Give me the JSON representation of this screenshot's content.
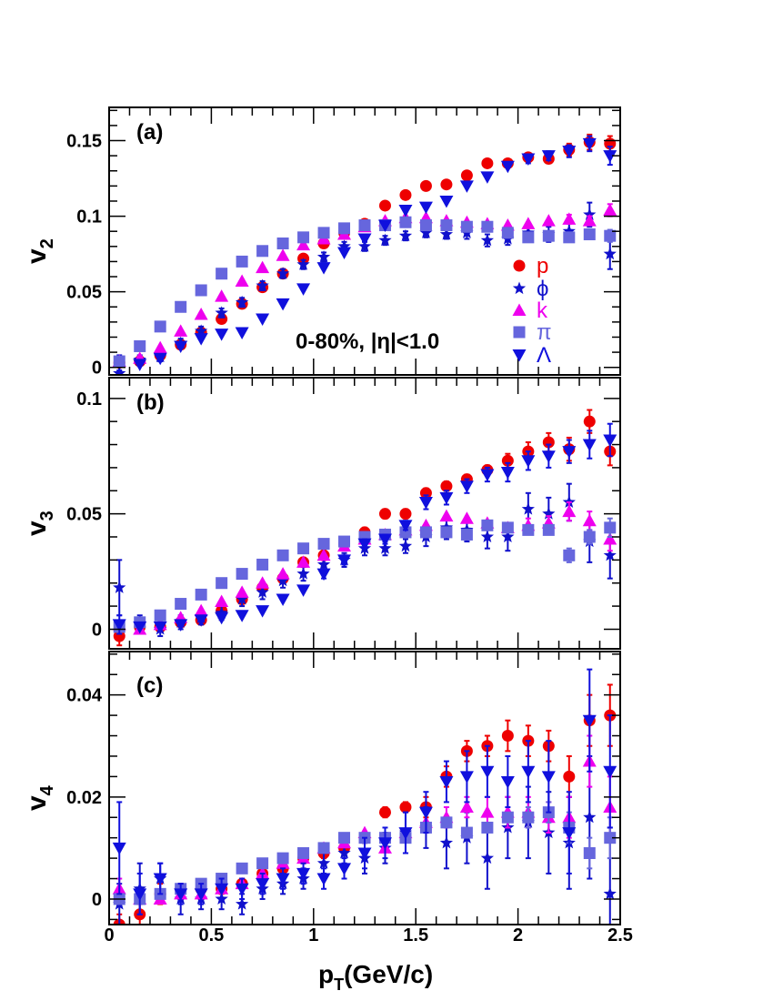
{
  "colors": {
    "p": "#ee0000",
    "phi": "#1010cc",
    "k": "#ee00ee",
    "pi": "#6666dd",
    "lambda": "#1010dd"
  },
  "xaxis": {
    "label_main": "p",
    "label_sub": "T",
    "label_unit": "(GeV/c)",
    "range": [
      0,
      2.5
    ],
    "ticks": [
      "0",
      "0.5",
      "1",
      "1.5",
      "2",
      "2.5"
    ]
  },
  "legend": {
    "p": "p",
    "phi": "ϕ",
    "k": "k",
    "pi": "π",
    "lambda": "Λ"
  },
  "annotation": "0-80%,  |η|<1.0",
  "chart_data": [
    {
      "type": "scatter",
      "panel_label": "(a)",
      "ylabel_main": "v",
      "ylabel_sub": "2",
      "ylim": [
        -0.005,
        0.172
      ],
      "yticks": [
        "0",
        "0.05",
        "0.1",
        "0.15"
      ],
      "ytick_values": [
        0,
        0.05,
        0.1,
        0.15
      ],
      "x": [
        0.05,
        0.15,
        0.25,
        0.35,
        0.45,
        0.55,
        0.65,
        0.75,
        0.85,
        0.95,
        1.05,
        1.15,
        1.25,
        1.35,
        1.45,
        1.55,
        1.65,
        1.75,
        1.85,
        1.95,
        2.05,
        2.15,
        2.25,
        2.35,
        2.45
      ],
      "series": [
        {
          "name": "p",
          "key": "p",
          "marker": "circle",
          "values": [
            0.003,
            0.004,
            0.008,
            0.015,
            0.023,
            0.032,
            0.042,
            0.053,
            0.062,
            0.072,
            0.082,
            0.089,
            0.095,
            0.107,
            0.114,
            0.12,
            0.121,
            0.127,
            0.135,
            0.135,
            0.139,
            0.138,
            0.144,
            0.149,
            0.148
          ],
          "err": [
            0,
            0,
            0,
            0,
            0,
            0,
            0,
            0,
            0,
            0,
            0,
            0,
            0,
            0,
            0,
            0,
            0,
            0,
            0,
            0,
            0.002,
            0.003,
            0.004,
            0.005,
            0.005
          ]
        },
        {
          "name": "ϕ",
          "key": "phi",
          "marker": "star",
          "values": [
            -0.004,
            0.005,
            0.007,
            0.016,
            0.024,
            0.036,
            0.043,
            0.054,
            0.062,
            0.068,
            0.073,
            0.08,
            0.08,
            0.084,
            0.087,
            0.089,
            0.088,
            0.089,
            0.084,
            0.085,
            0.089,
            0.088,
            0.09,
            0.101,
            0.075
          ],
          "err": [
            0.012,
            0.003,
            0.003,
            0.003,
            0.003,
            0.003,
            0.003,
            0.003,
            0.003,
            0.003,
            0.003,
            0.003,
            0.003,
            0.003,
            0.003,
            0.003,
            0.003,
            0.004,
            0.004,
            0.004,
            0.005,
            0.005,
            0.006,
            0.008,
            0.01
          ]
        },
        {
          "name": "k",
          "key": "k",
          "marker": "triangle-up",
          "values": [
            0.004,
            0.006,
            0.013,
            0.024,
            0.035,
            0.047,
            0.057,
            0.066,
            0.074,
            0.081,
            0.085,
            0.088,
            0.093,
            0.097,
            0.099,
            0.099,
            0.097,
            0.096,
            0.095,
            0.094,
            0.095,
            0.097,
            0.098,
            0.097,
            0.104
          ],
          "err": [
            0,
            0,
            0,
            0,
            0,
            0,
            0,
            0,
            0,
            0,
            0,
            0,
            0,
            0,
            0,
            0,
            0,
            0,
            0,
            0,
            0,
            0,
            0.003,
            0.003,
            0.004
          ]
        },
        {
          "name": "π",
          "key": "pi",
          "marker": "square",
          "values": [
            0.004,
            0.014,
            0.027,
            0.04,
            0.051,
            0.062,
            0.07,
            0.077,
            0.082,
            0.086,
            0.089,
            0.092,
            0.094,
            0.094,
            0.096,
            0.094,
            0.094,
            0.093,
            0.093,
            0.089,
            0.086,
            0.087,
            0.086,
            0.088,
            0.087
          ],
          "err": [
            0,
            0,
            0,
            0,
            0,
            0,
            0,
            0,
            0,
            0,
            0,
            0,
            0,
            0,
            0,
            0,
            0,
            0,
            0,
            0,
            0.002,
            0.002,
            0.003,
            0.003,
            0.004
          ]
        },
        {
          "name": "Λ",
          "key": "lambda",
          "marker": "triangle-down",
          "values": [
            -0.008,
            0.002,
            0.006,
            0.014,
            0.019,
            0.022,
            0.023,
            0.032,
            0.042,
            0.052,
            0.066,
            0.076,
            0.085,
            0.094,
            0.104,
            0.106,
            0.11,
            0.12,
            0.126,
            0.133,
            0.138,
            0.14,
            0.143,
            0.148,
            0.14
          ],
          "err": [
            0.006,
            0,
            0,
            0,
            0,
            0,
            0,
            0,
            0,
            0,
            0,
            0,
            0,
            0,
            0,
            0,
            0,
            0,
            0,
            0,
            0.003,
            0.003,
            0.004,
            0.005,
            0.006
          ]
        }
      ]
    },
    {
      "type": "scatter",
      "panel_label": "(b)",
      "ylabel_main": "v",
      "ylabel_sub": "3",
      "ylim": [
        -0.0085,
        0.109
      ],
      "yticks": [
        "0",
        "0.05",
        "0.1"
      ],
      "ytick_values": [
        0,
        0.05,
        0.1
      ],
      "x": [
        0.05,
        0.15,
        0.25,
        0.35,
        0.45,
        0.55,
        0.65,
        0.75,
        0.85,
        0.95,
        1.05,
        1.15,
        1.25,
        1.35,
        1.45,
        1.55,
        1.65,
        1.75,
        1.85,
        1.95,
        2.05,
        2.15,
        2.25,
        2.35,
        2.45
      ],
      "series": [
        {
          "name": "p",
          "key": "p",
          "marker": "circle",
          "values": [
            -0.003,
            0.001,
            0.001,
            0.003,
            0.004,
            0.008,
            0.013,
            0.018,
            0.022,
            0.029,
            0.032,
            0.037,
            0.042,
            0.05,
            0.05,
            0.059,
            0.062,
            0.065,
            0.069,
            0.073,
            0.077,
            0.081,
            0.078,
            0.09,
            0.077
          ],
          "err": [
            0.004,
            0.002,
            0.002,
            0.002,
            0.002,
            0.002,
            0.002,
            0.002,
            0.002,
            0.002,
            0.002,
            0.002,
            0.002,
            0.002,
            0.002,
            0.002,
            0.002,
            0.002,
            0.002,
            0.003,
            0.004,
            0.004,
            0.005,
            0.005,
            0.006
          ]
        },
        {
          "name": "ϕ",
          "key": "phi",
          "marker": "star",
          "values": [
            0.018,
            0.002,
            0.0,
            0.003,
            0.005,
            0.007,
            0.013,
            0.016,
            0.021,
            0.024,
            0.028,
            0.03,
            0.035,
            0.035,
            0.036,
            0.04,
            0.044,
            0.043,
            0.04,
            0.04,
            0.052,
            0.05,
            0.055,
            0.038,
            0.032
          ],
          "err": [
            0.012,
            0.004,
            0.003,
            0.003,
            0.003,
            0.003,
            0.003,
            0.003,
            0.003,
            0.003,
            0.003,
            0.003,
            0.003,
            0.003,
            0.003,
            0.004,
            0.005,
            0.005,
            0.005,
            0.006,
            0.007,
            0.007,
            0.008,
            0.009,
            0.01
          ]
        },
        {
          "name": "k",
          "key": "k",
          "marker": "triangle-up",
          "values": [
            0.002,
            0.0,
            0.002,
            0.005,
            0.008,
            0.012,
            0.016,
            0.02,
            0.024,
            0.029,
            0.032,
            0.036,
            0.039,
            0.041,
            0.043,
            0.045,
            0.049,
            0.048,
            0.046,
            0.044,
            0.045,
            0.046,
            0.051,
            0.047,
            0.039
          ],
          "err": [
            0,
            0,
            0,
            0,
            0,
            0,
            0,
            0,
            0,
            0,
            0,
            0,
            0,
            0,
            0,
            0,
            0,
            0,
            0,
            0,
            0.003,
            0.003,
            0.004,
            0.004,
            0.005
          ]
        },
        {
          "name": "π",
          "key": "pi",
          "marker": "square",
          "values": [
            0.001,
            0.003,
            0.006,
            0.011,
            0.015,
            0.02,
            0.024,
            0.028,
            0.032,
            0.035,
            0.037,
            0.038,
            0.04,
            0.041,
            0.042,
            0.042,
            0.042,
            0.041,
            0.045,
            0.044,
            0.043,
            0.043,
            0.032,
            0.04,
            0.044
          ],
          "err": [
            0,
            0,
            0,
            0,
            0,
            0,
            0,
            0,
            0,
            0,
            0,
            0,
            0,
            0,
            0,
            0,
            0,
            0,
            0,
            0,
            0.002,
            0.002,
            0.003,
            0.003,
            0.004
          ]
        },
        {
          "name": "Λ",
          "key": "lambda",
          "marker": "triangle-down",
          "values": [
            0.002,
            0.001,
            0.001,
            0.002,
            0.004,
            0.005,
            0.006,
            0.008,
            0.013,
            0.017,
            0.024,
            0.03,
            0.037,
            0.039,
            0.045,
            0.055,
            0.057,
            0.062,
            0.067,
            0.068,
            0.073,
            0.075,
            0.077,
            0.08,
            0.082
          ],
          "err": [
            0.004,
            0,
            0,
            0,
            0,
            0,
            0,
            0,
            0,
            0,
            0.002,
            0.002,
            0.002,
            0.002,
            0.002,
            0.003,
            0.003,
            0.003,
            0.003,
            0.004,
            0.004,
            0.005,
            0.005,
            0.006,
            0.007
          ]
        }
      ]
    },
    {
      "type": "scatter",
      "panel_label": "(c)",
      "ylabel_main": "v",
      "ylabel_sub": "4",
      "ylim": [
        -0.005,
        0.0485
      ],
      "yticks": [
        "0",
        "0.02",
        "0.04"
      ],
      "ytick_values": [
        0,
        0.02,
        0.04
      ],
      "x": [
        0.05,
        0.15,
        0.25,
        0.35,
        0.45,
        0.55,
        0.65,
        0.75,
        0.85,
        0.95,
        1.05,
        1.15,
        1.25,
        1.35,
        1.45,
        1.55,
        1.65,
        1.75,
        1.85,
        1.95,
        2.05,
        2.15,
        2.25,
        2.35,
        2.45
      ],
      "series": [
        {
          "name": "p",
          "key": "p",
          "marker": "circle",
          "values": [
            -0.005,
            -0.003,
            0.001,
            0.002,
            0.002,
            0.002,
            0.003,
            0.005,
            0.006,
            0.008,
            0.009,
            0.01,
            0.012,
            0.017,
            0.018,
            0.018,
            0.024,
            0.029,
            0.03,
            0.032,
            0.031,
            0.03,
            0.024,
            0.035,
            0.036
          ],
          "err": [
            0.002,
            0.002,
            0.002,
            0.001,
            0.001,
            0.001,
            0.001,
            0.001,
            0.001,
            0.001,
            0.001,
            0.001,
            0.001,
            0.001,
            0.001,
            0.002,
            0.002,
            0.002,
            0.002,
            0.003,
            0.003,
            0.003,
            0.004,
            0.005,
            0.006
          ]
        },
        {
          "name": "ϕ",
          "key": "phi",
          "marker": "star",
          "values": [
            -0.001,
            0.002,
            0.004,
            0.0,
            0.0,
            0.0,
            -0.001,
            0.002,
            0.003,
            0.004,
            0.007,
            0.009,
            0.008,
            0.01,
            0.013,
            0.014,
            0.011,
            0.012,
            0.008,
            0.014,
            0.015,
            0.013,
            0.011,
            0.016,
            0.001
          ],
          "err": [
            0.004,
            0.005,
            0.003,
            0.003,
            0.002,
            0.002,
            0.002,
            0.002,
            0.002,
            0.002,
            0.002,
            0.002,
            0.003,
            0.003,
            0.004,
            0.004,
            0.005,
            0.005,
            0.006,
            0.006,
            0.007,
            0.008,
            0.009,
            0.012,
            0.013
          ]
        },
        {
          "name": "k",
          "key": "k",
          "marker": "triangle-up",
          "values": [
            0.002,
            0.0,
            0.0,
            0.001,
            0.001,
            0.002,
            0.003,
            0.005,
            0.007,
            0.008,
            0.01,
            0.011,
            0.013,
            0.01,
            0.013,
            0.015,
            0.016,
            0.018,
            0.017,
            0.017,
            0.017,
            0.016,
            0.016,
            0.027,
            0.018
          ],
          "err": [
            0.002,
            0,
            0,
            0,
            0,
            0,
            0,
            0,
            0,
            0,
            0,
            0,
            0,
            0,
            0,
            0.002,
            0.002,
            0.002,
            0.003,
            0.003,
            0.003,
            0.003,
            0.004,
            0.005,
            0.006
          ]
        },
        {
          "name": "π",
          "key": "pi",
          "marker": "square",
          "values": [
            0.0,
            0.0,
            0.001,
            0.002,
            0.003,
            0.004,
            0.006,
            0.007,
            0.008,
            0.009,
            0.01,
            0.012,
            0.012,
            0.012,
            0.012,
            0.014,
            0.015,
            0.013,
            0.014,
            0.016,
            0.016,
            0.017,
            0.014,
            0.009,
            0.012
          ],
          "err": [
            0,
            0,
            0,
            0,
            0,
            0,
            0,
            0,
            0,
            0,
            0,
            0,
            0,
            0,
            0,
            0,
            0,
            0,
            0,
            0,
            0.002,
            0.002,
            0.003,
            0.003,
            0.004
          ]
        },
        {
          "name": "Λ",
          "key": "lambda",
          "marker": "triangle-down",
          "values": [
            0.01,
            0.001,
            0.004,
            0.001,
            0.001,
            0.002,
            0.002,
            0.003,
            0.004,
            0.005,
            0.004,
            0.006,
            0.009,
            0.011,
            0.013,
            0.017,
            0.023,
            0.024,
            0.025,
            0.023,
            0.025,
            0.024,
            0.013,
            0.035,
            0.025
          ],
          "err": [
            0.009,
            0.004,
            0.003,
            0.002,
            0.002,
            0.002,
            0.002,
            0.002,
            0.002,
            0.002,
            0.002,
            0.002,
            0.003,
            0.003,
            0.004,
            0.004,
            0.004,
            0.005,
            0.005,
            0.005,
            0.006,
            0.007,
            0.008,
            0.01,
            0.011
          ]
        }
      ]
    }
  ]
}
